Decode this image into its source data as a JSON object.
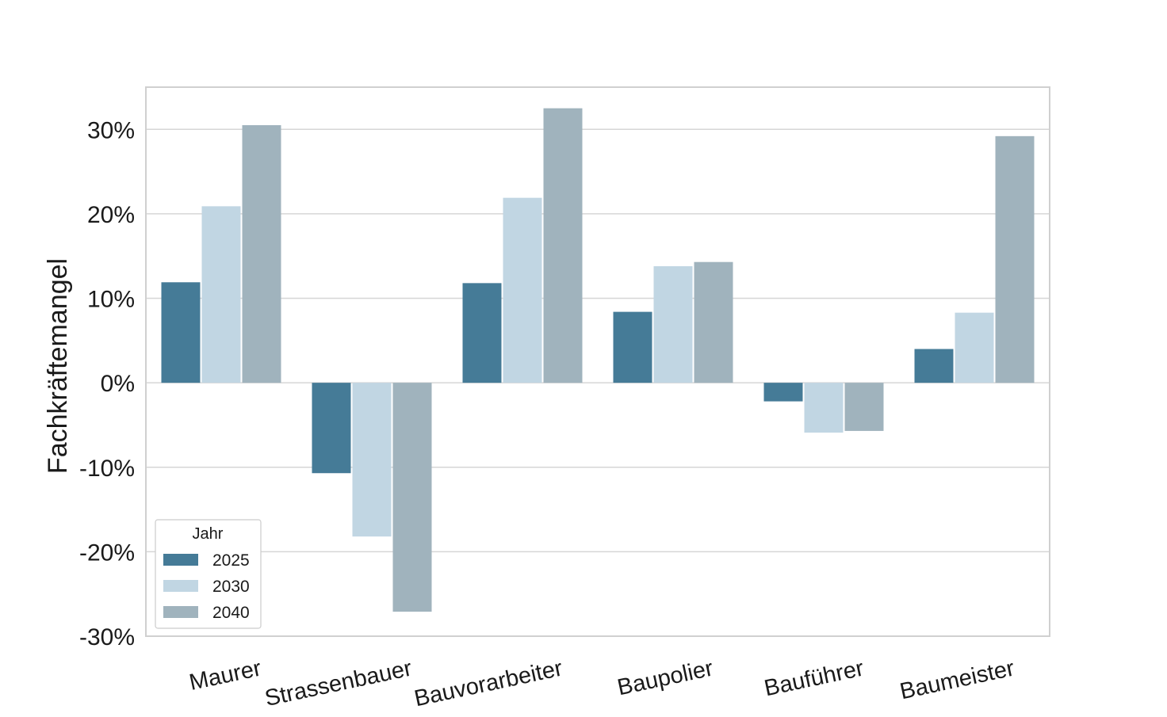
{
  "chart_data": {
    "type": "bar",
    "ylabel": "Fachkräftemangel",
    "ylim": [
      -30,
      35
    ],
    "yticks": [
      {
        "value": 30,
        "label": "30%"
      },
      {
        "value": 20,
        "label": "20%"
      },
      {
        "value": 10,
        "label": "10%"
      },
      {
        "value": 0,
        "label": "0%"
      },
      {
        "value": -10,
        "label": "-10%"
      },
      {
        "value": -20,
        "label": "-20%"
      },
      {
        "value": -30,
        "label": "-30%"
      }
    ],
    "categories": [
      "Maurer",
      "Strassenbauer",
      "Bauvorarbeiter",
      "Baupolier",
      "Bauführer",
      "Baumeister"
    ],
    "series": [
      {
        "name": "2025",
        "color": "#457b97",
        "values": [
          11.9,
          -10.7,
          11.8,
          8.4,
          -2.2,
          4.0
        ]
      },
      {
        "name": "2030",
        "color": "#c1d6e3",
        "values": [
          20.9,
          -18.2,
          21.9,
          13.8,
          -5.9,
          8.3
        ]
      },
      {
        "name": "2040",
        "color": "#a0b3bd",
        "values": [
          30.5,
          -27.1,
          32.5,
          14.3,
          -5.7,
          29.2
        ]
      }
    ],
    "legend": {
      "title": "Jahr",
      "position": "lower-left"
    },
    "grid": true
  }
}
